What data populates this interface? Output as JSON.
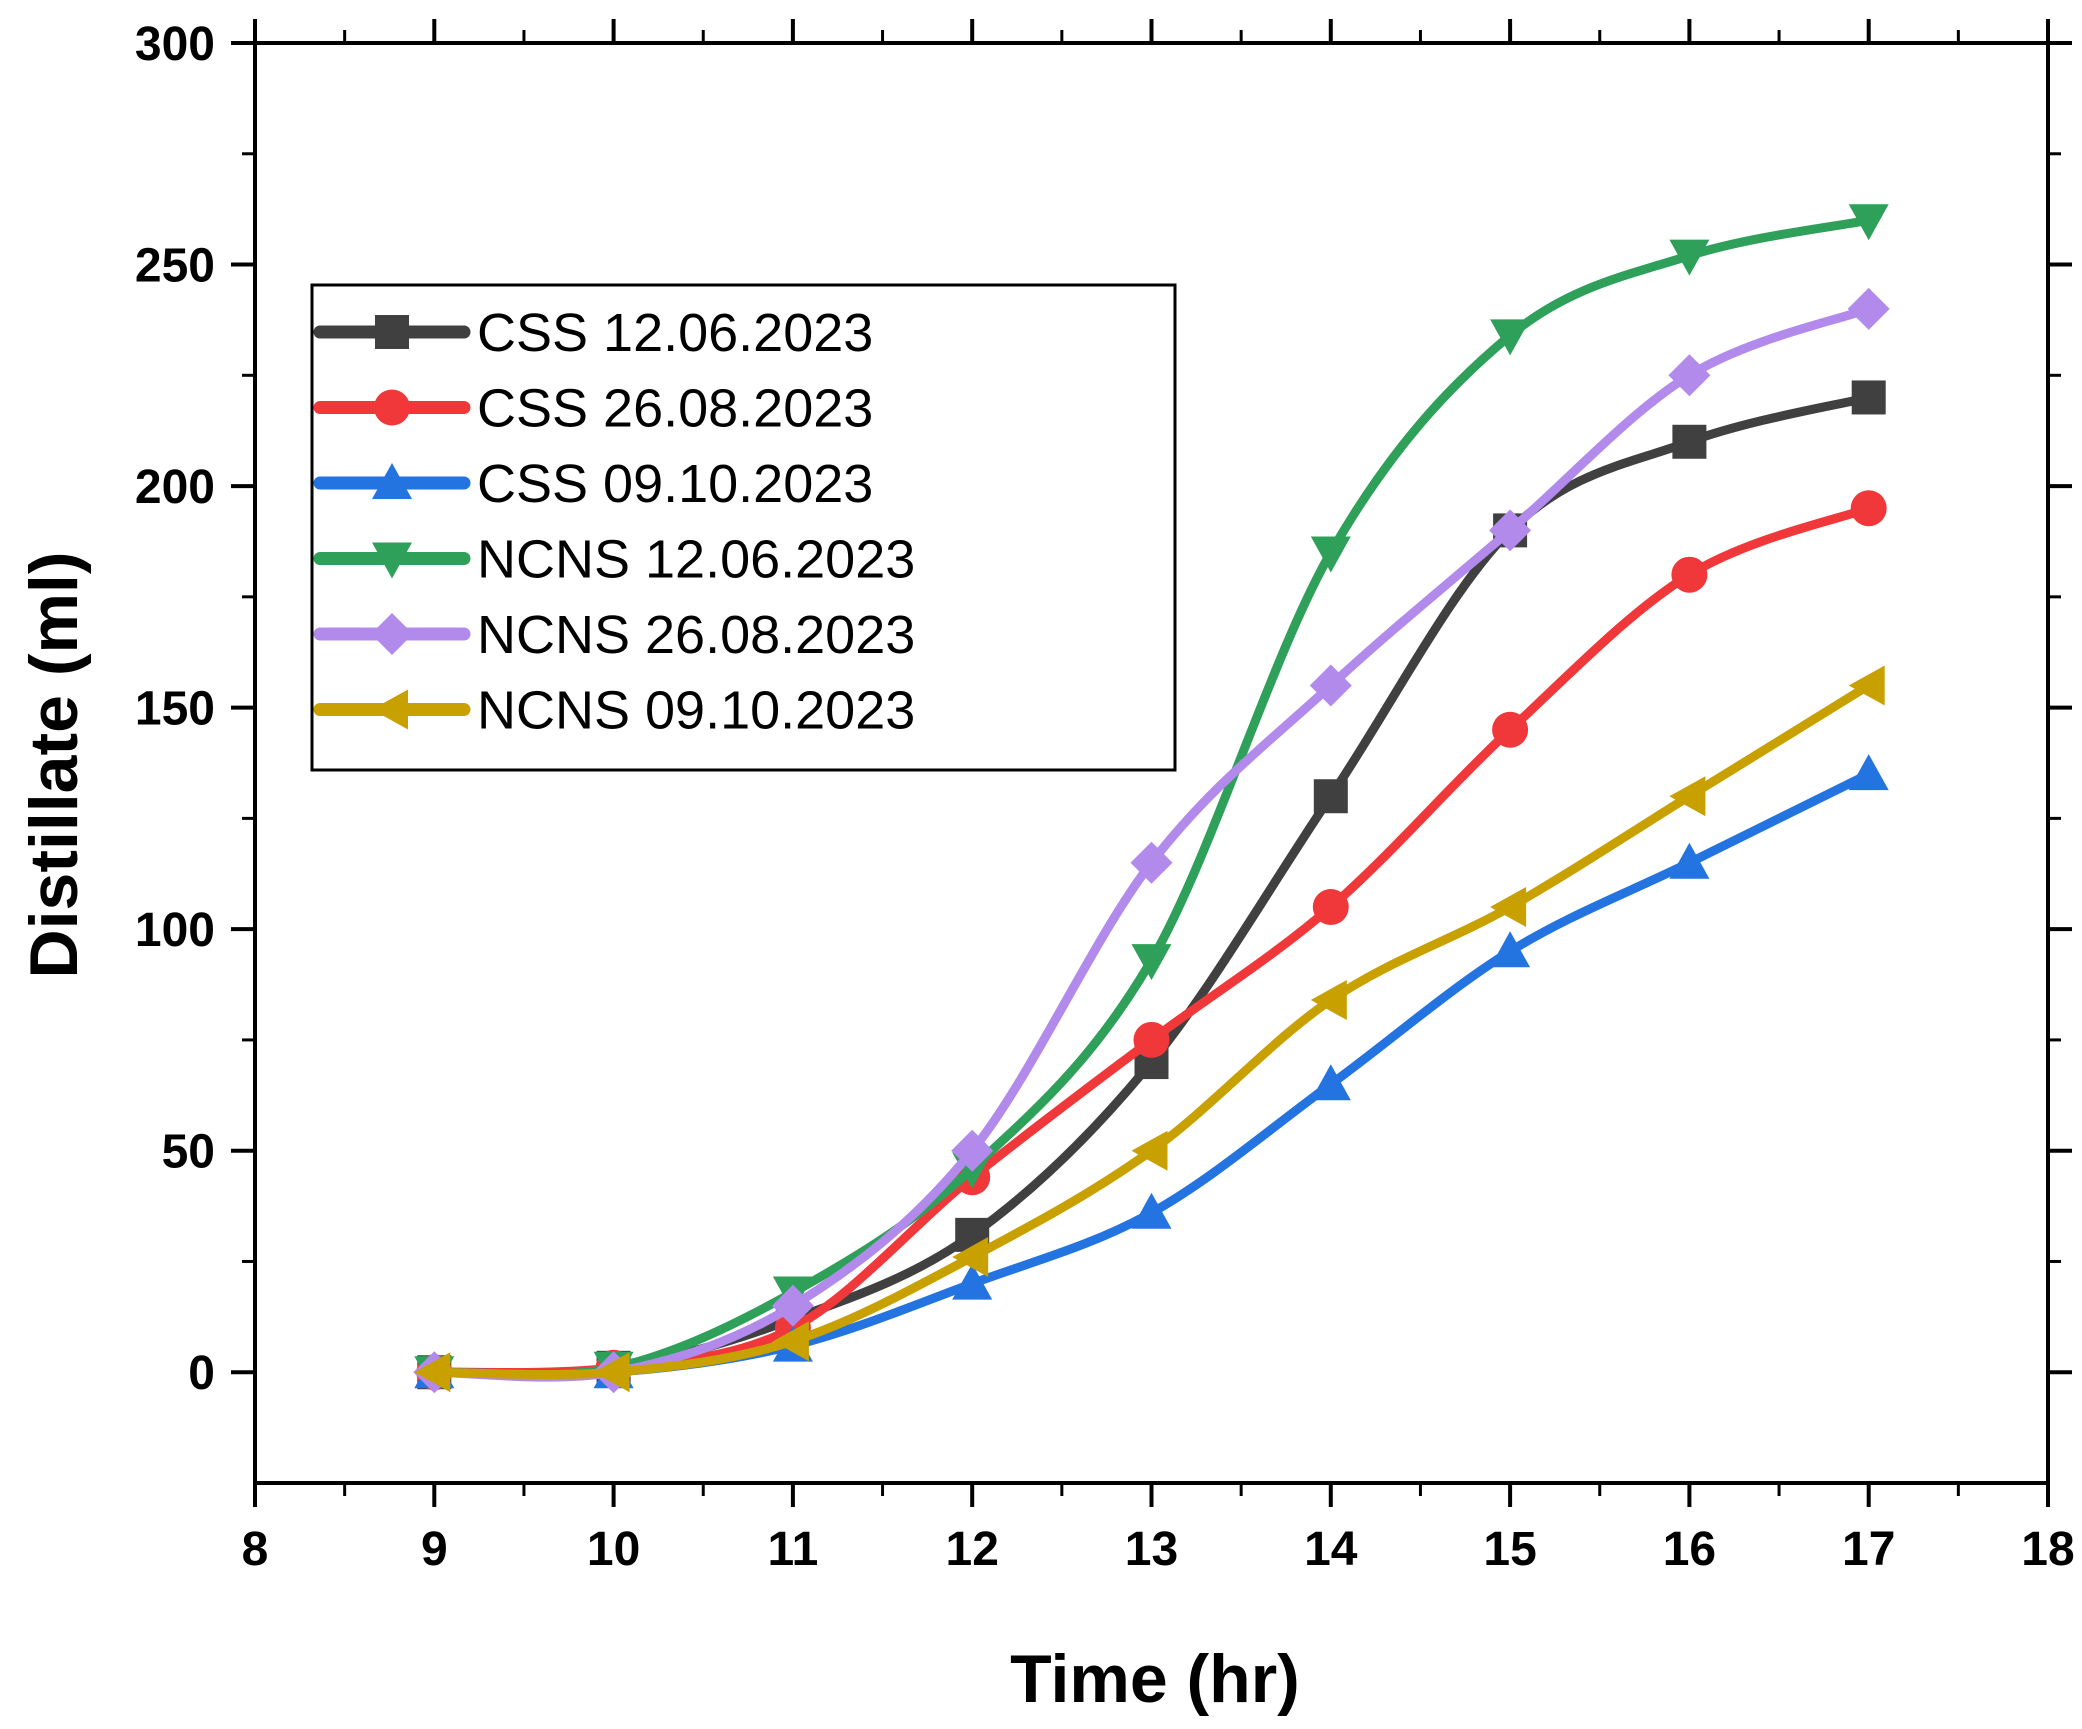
{
  "chart_data": {
    "type": "line",
    "title": "",
    "xlabel": "Time (hr)",
    "ylabel": "Distillate (ml)",
    "xlim": [
      8,
      18
    ],
    "ylim": [
      -25,
      300
    ],
    "xticks": [
      8,
      9,
      10,
      11,
      12,
      13,
      14,
      15,
      16,
      17,
      18
    ],
    "yticks": [
      0,
      50,
      100,
      150,
      200,
      250,
      300
    ],
    "grid": false,
    "legend_position": "upper-left",
    "x": [
      9,
      10,
      11,
      12,
      13,
      14,
      15,
      16,
      17
    ],
    "series": [
      {
        "name": "CSS 12.06.2023",
        "color": "#404040",
        "marker": "square",
        "values": [
          0,
          1,
          12,
          31,
          70,
          130,
          190,
          210,
          220
        ]
      },
      {
        "name": "CSS 26.08.2023",
        "color": "#f0383a",
        "marker": "circle",
        "values": [
          0,
          1,
          10,
          44,
          75,
          105,
          145,
          180,
          195
        ]
      },
      {
        "name": "CSS 09.10.2023",
        "color": "#2373e0",
        "marker": "triangle-up",
        "values": [
          0,
          0,
          6,
          20,
          36,
          65,
          95,
          115,
          135
        ]
      },
      {
        "name": "NCNS 12.06.2023",
        "color": "#2fa05a",
        "marker": "triangle-down",
        "values": [
          0,
          1,
          18,
          46,
          93,
          185,
          234,
          252,
          260
        ]
      },
      {
        "name": "NCNS 26.08.2023",
        "color": "#b28aec",
        "marker": "diamond",
        "values": [
          0,
          0,
          15,
          50,
          115,
          155,
          190,
          225,
          240
        ]
      },
      {
        "name": "NCNS 09.10.2023",
        "color": "#c8a000",
        "marker": "triangle-left",
        "values": [
          0,
          0,
          7,
          26,
          50,
          84,
          105,
          130,
          155
        ]
      }
    ]
  }
}
